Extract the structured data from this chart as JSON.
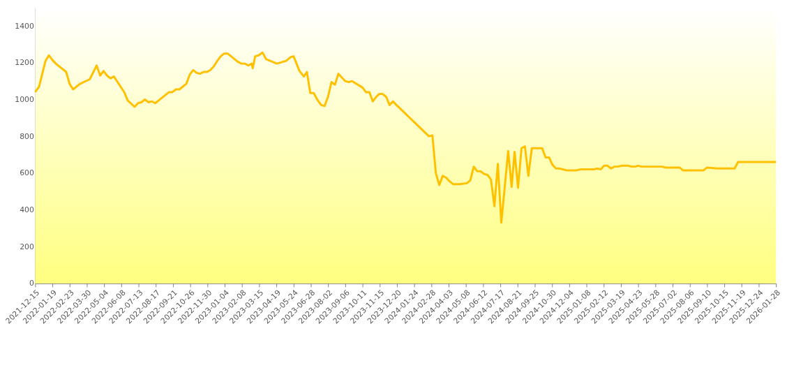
{
  "chart_data": {
    "type": "line",
    "ylim": [
      0,
      1500
    ],
    "yticks": [
      0,
      200,
      400,
      600,
      800,
      1000,
      1200,
      1400
    ],
    "xlim": [
      "2021-12-15",
      "2026-01-28"
    ],
    "xticks": [
      "2021-12-15",
      "2022-01-19",
      "2022-02-23",
      "2022-03-30",
      "2022-05-04",
      "2022-06-08",
      "2022-07-13",
      "2022-08-17",
      "2022-09-21",
      "2022-10-26",
      "2022-11-30",
      "2023-01-04",
      "2023-02-08",
      "2023-03-15",
      "2023-04-19",
      "2023-05-24",
      "2023-06-28",
      "2023-08-02",
      "2023-09-06",
      "2023-10-11",
      "2023-11-15",
      "2023-12-20",
      "2024-01-24",
      "2024-02-28",
      "2024-04-03",
      "2024-05-08",
      "2024-06-12",
      "2024-07-17",
      "2024-08-21",
      "2024-09-25",
      "2024-10-30",
      "2024-12-04",
      "2025-01-08",
      "2025-02-12",
      "2025-03-19",
      "2025-04-23",
      "2025-05-28",
      "2025-07-02",
      "2025-08-06",
      "2025-09-10",
      "2025-10-15",
      "2025-11-19",
      "2025-12-24",
      "2026-01-28"
    ],
    "grid": false,
    "marker": "none",
    "line_style": "solid",
    "x": [
      "2021-12-15",
      "2021-12-23",
      "2022-01-05",
      "2022-01-12",
      "2022-01-19",
      "2022-01-26",
      "2022-02-16",
      "2022-02-23",
      "2022-03-02",
      "2022-03-16",
      "2022-04-05",
      "2022-04-19",
      "2022-04-26",
      "2022-05-03",
      "2022-05-10",
      "2022-05-17",
      "2022-05-24",
      "2022-06-14",
      "2022-06-21",
      "2022-07-05",
      "2022-07-12",
      "2022-07-19",
      "2022-07-26",
      "2022-08-02",
      "2022-08-09",
      "2022-08-16",
      "2022-08-23",
      "2022-09-06",
      "2022-09-13",
      "2022-09-20",
      "2022-09-27",
      "2022-10-04",
      "2022-10-18",
      "2022-10-25",
      "2022-11-01",
      "2022-11-08",
      "2022-11-15",
      "2022-11-22",
      "2022-11-29",
      "2022-12-06",
      "2022-12-13",
      "2022-12-20",
      "2022-12-27",
      "2023-01-03",
      "2023-01-10",
      "2023-01-24",
      "2023-01-31",
      "2023-02-07",
      "2023-02-14",
      "2023-02-21",
      "2023-02-28",
      "2023-03-02",
      "2023-03-07",
      "2023-03-14",
      "2023-03-22",
      "2023-03-29",
      "2023-04-20",
      "2023-05-09",
      "2023-05-18",
      "2023-05-24",
      "2023-06-05",
      "2023-06-14",
      "2023-06-20",
      "2023-06-27",
      "2023-07-04",
      "2023-07-11",
      "2023-07-19",
      "2023-07-26",
      "2023-08-02",
      "2023-08-09",
      "2023-08-16",
      "2023-08-23",
      "2023-08-30",
      "2023-09-06",
      "2023-09-13",
      "2023-09-20",
      "2023-10-11",
      "2023-10-18",
      "2023-10-25",
      "2023-11-01",
      "2023-11-08",
      "2023-11-14",
      "2023-11-21",
      "2023-11-28",
      "2023-12-05",
      "2023-12-12",
      "2023-12-19",
      "2024-02-23",
      "2024-03-01",
      "2024-03-08",
      "2024-03-15",
      "2024-03-22",
      "2024-03-29",
      "2024-04-05",
      "2024-04-12",
      "2024-04-19",
      "2024-04-26",
      "2024-05-10",
      "2024-05-17",
      "2024-05-24",
      "2024-05-31",
      "2024-06-07",
      "2024-06-14",
      "2024-06-21",
      "2024-06-28",
      "2024-07-05",
      "2024-07-12",
      "2024-07-19",
      "2024-07-26",
      "2024-08-02",
      "2024-08-09",
      "2024-08-15",
      "2024-08-22",
      "2024-08-29",
      "2024-09-05",
      "2024-09-12",
      "2024-09-19",
      "2024-10-10",
      "2024-10-17",
      "2024-10-24",
      "2024-10-31",
      "2024-11-07",
      "2024-11-14",
      "2024-11-28",
      "2024-12-19",
      "2024-12-26",
      "2025-01-23",
      "2025-01-30",
      "2025-02-06",
      "2025-02-13",
      "2025-02-20",
      "2025-02-27",
      "2025-03-06",
      "2025-03-13",
      "2025-03-20",
      "2025-03-27",
      "2025-04-03",
      "2025-04-10",
      "2025-04-17",
      "2025-04-23",
      "2025-04-30",
      "2025-06-11",
      "2025-06-18",
      "2025-07-16",
      "2025-07-23",
      "2025-09-03",
      "2025-09-10",
      "2025-10-01",
      "2025-11-05",
      "2025-11-12",
      "2026-01-28"
    ],
    "series": [
      {
        "color": "#ffc000",
        "values": [
          1040,
          1070,
          1210,
          1240,
          1215,
          1195,
          1150,
          1085,
          1055,
          1085,
          1110,
          1185,
          1130,
          1155,
          1130,
          1115,
          1125,
          1040,
          995,
          960,
          980,
          985,
          1000,
          985,
          990,
          980,
          995,
          1025,
          1040,
          1040,
          1055,
          1055,
          1085,
          1135,
          1160,
          1145,
          1140,
          1150,
          1150,
          1160,
          1180,
          1210,
          1235,
          1250,
          1250,
          1220,
          1205,
          1195,
          1195,
          1185,
          1195,
          1170,
          1235,
          1240,
          1255,
          1220,
          1195,
          1210,
          1230,
          1235,
          1155,
          1125,
          1150,
          1035,
          1035,
          1000,
          970,
          965,
          1015,
          1095,
          1080,
          1140,
          1120,
          1100,
          1095,
          1100,
          1065,
          1040,
          1040,
          990,
          1015,
          1030,
          1030,
          1015,
          970,
          990,
          970,
          800,
          805,
          600,
          535,
          585,
          575,
          555,
          540,
          540,
          540,
          545,
          560,
          635,
          610,
          610,
          595,
          590,
          565,
          420,
          650,
          330,
          525,
          720,
          525,
          715,
          520,
          735,
          745,
          585,
          735,
          735,
          685,
          685,
          645,
          625,
          625,
          615,
          615,
          620,
          620,
          625,
          620,
          640,
          640,
          625,
          635,
          635,
          640,
          640,
          640,
          635,
          635,
          640,
          635,
          635,
          630,
          630,
          615,
          615,
          630,
          625,
          625,
          660,
          660
        ]
      }
    ]
  }
}
